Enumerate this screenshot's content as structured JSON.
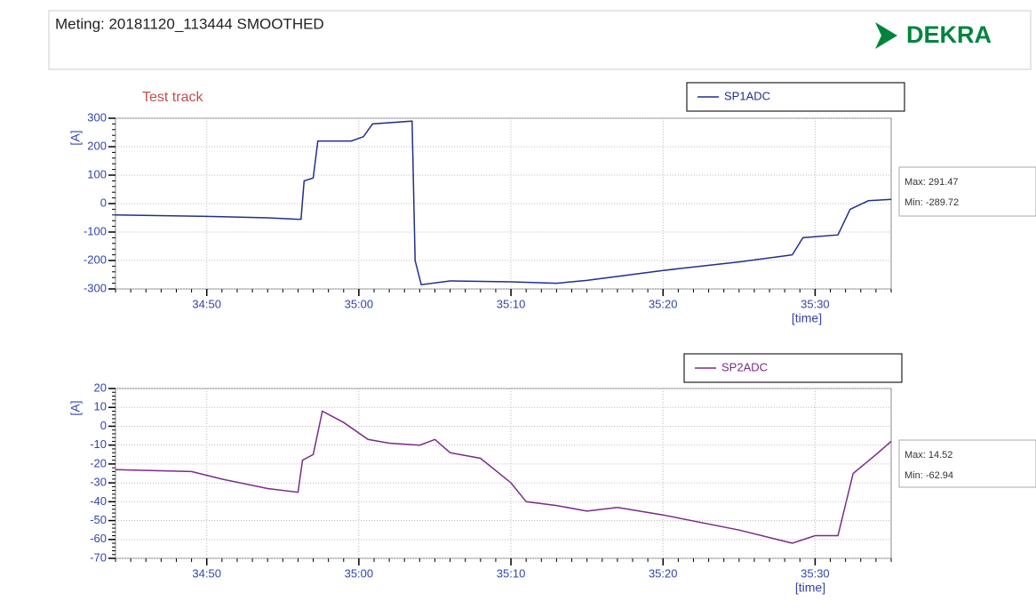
{
  "header": {
    "title": "Meting:  20181120_113444 SMOOTHED",
    "logo": "DEKRA"
  },
  "chart_data": [
    {
      "type": "line",
      "annotation": "Test track",
      "y_label": "[A]",
      "x_label": "[time]",
      "xlim": [
        2084,
        2135
      ],
      "xticks": [
        {
          "value": 2090,
          "label": "34:50"
        },
        {
          "value": 2100,
          "label": "35:00"
        },
        {
          "value": 2110,
          "label": "35:10"
        },
        {
          "value": 2120,
          "label": "35:20"
        },
        {
          "value": 2130,
          "label": "35:30"
        }
      ],
      "ylim": [
        -300,
        300
      ],
      "yticks": [
        -300,
        -200,
        -100,
        0,
        100,
        200,
        300
      ],
      "grid": true,
      "stats": [
        "Max: 291.47",
        "Min: -289.72"
      ],
      "series": [
        {
          "name": "SP1ADC",
          "color": "#1f2f8f",
          "x": [
            2084,
            2090,
            2094,
            2096,
            2096.2,
            2096.4,
            2097,
            2097.3,
            2099.5,
            2100.3,
            2100.9,
            2103.5,
            2103.7,
            2104.1,
            2106,
            2110,
            2113,
            2115,
            2120,
            2125,
            2128.5,
            2129.2,
            2131.5,
            2132.3,
            2133.5,
            2135
          ],
          "values": [
            -40,
            -45,
            -50,
            -55,
            -55,
            80,
            90,
            220,
            220,
            235,
            280,
            290,
            -200,
            -285,
            -272,
            -275,
            -280,
            -270,
            -235,
            -205,
            -180,
            -120,
            -110,
            -20,
            10,
            15
          ]
        }
      ]
    },
    {
      "type": "line",
      "y_label": "[A]",
      "x_label": "[time]",
      "xlim": [
        2084,
        2135
      ],
      "xticks": [
        {
          "value": 2090,
          "label": "34:50"
        },
        {
          "value": 2100,
          "label": "35:00"
        },
        {
          "value": 2110,
          "label": "35:10"
        },
        {
          "value": 2120,
          "label": "35:20"
        },
        {
          "value": 2130,
          "label": "35:30"
        }
      ],
      "ylim": [
        -70,
        20
      ],
      "yticks": [
        -70,
        -60,
        -50,
        -40,
        -30,
        -20,
        -10,
        0,
        10,
        20
      ],
      "grid": true,
      "stats": [
        "Max: 14.52",
        "Min: -62.94"
      ],
      "series": [
        {
          "name": "SP2ADC",
          "color": "#7b2a8a",
          "x": [
            2084,
            2089,
            2091,
            2094,
            2096,
            2096.3,
            2097,
            2097.6,
            2099,
            2100.6,
            2102,
            2104,
            2105,
            2106,
            2108,
            2110,
            2111,
            2113,
            2115,
            2117,
            2120,
            2125,
            2128.5,
            2130,
            2131.5,
            2132.5,
            2134,
            2135
          ],
          "values": [
            -23,
            -24,
            -28,
            -33,
            -35,
            -18,
            -15,
            8,
            2,
            -7,
            -9,
            -10,
            -7,
            -14,
            -17,
            -30,
            -40,
            -42,
            -45,
            -43,
            -47,
            -55,
            -62,
            -58,
            -58,
            -25,
            -15,
            -8
          ]
        }
      ]
    }
  ]
}
